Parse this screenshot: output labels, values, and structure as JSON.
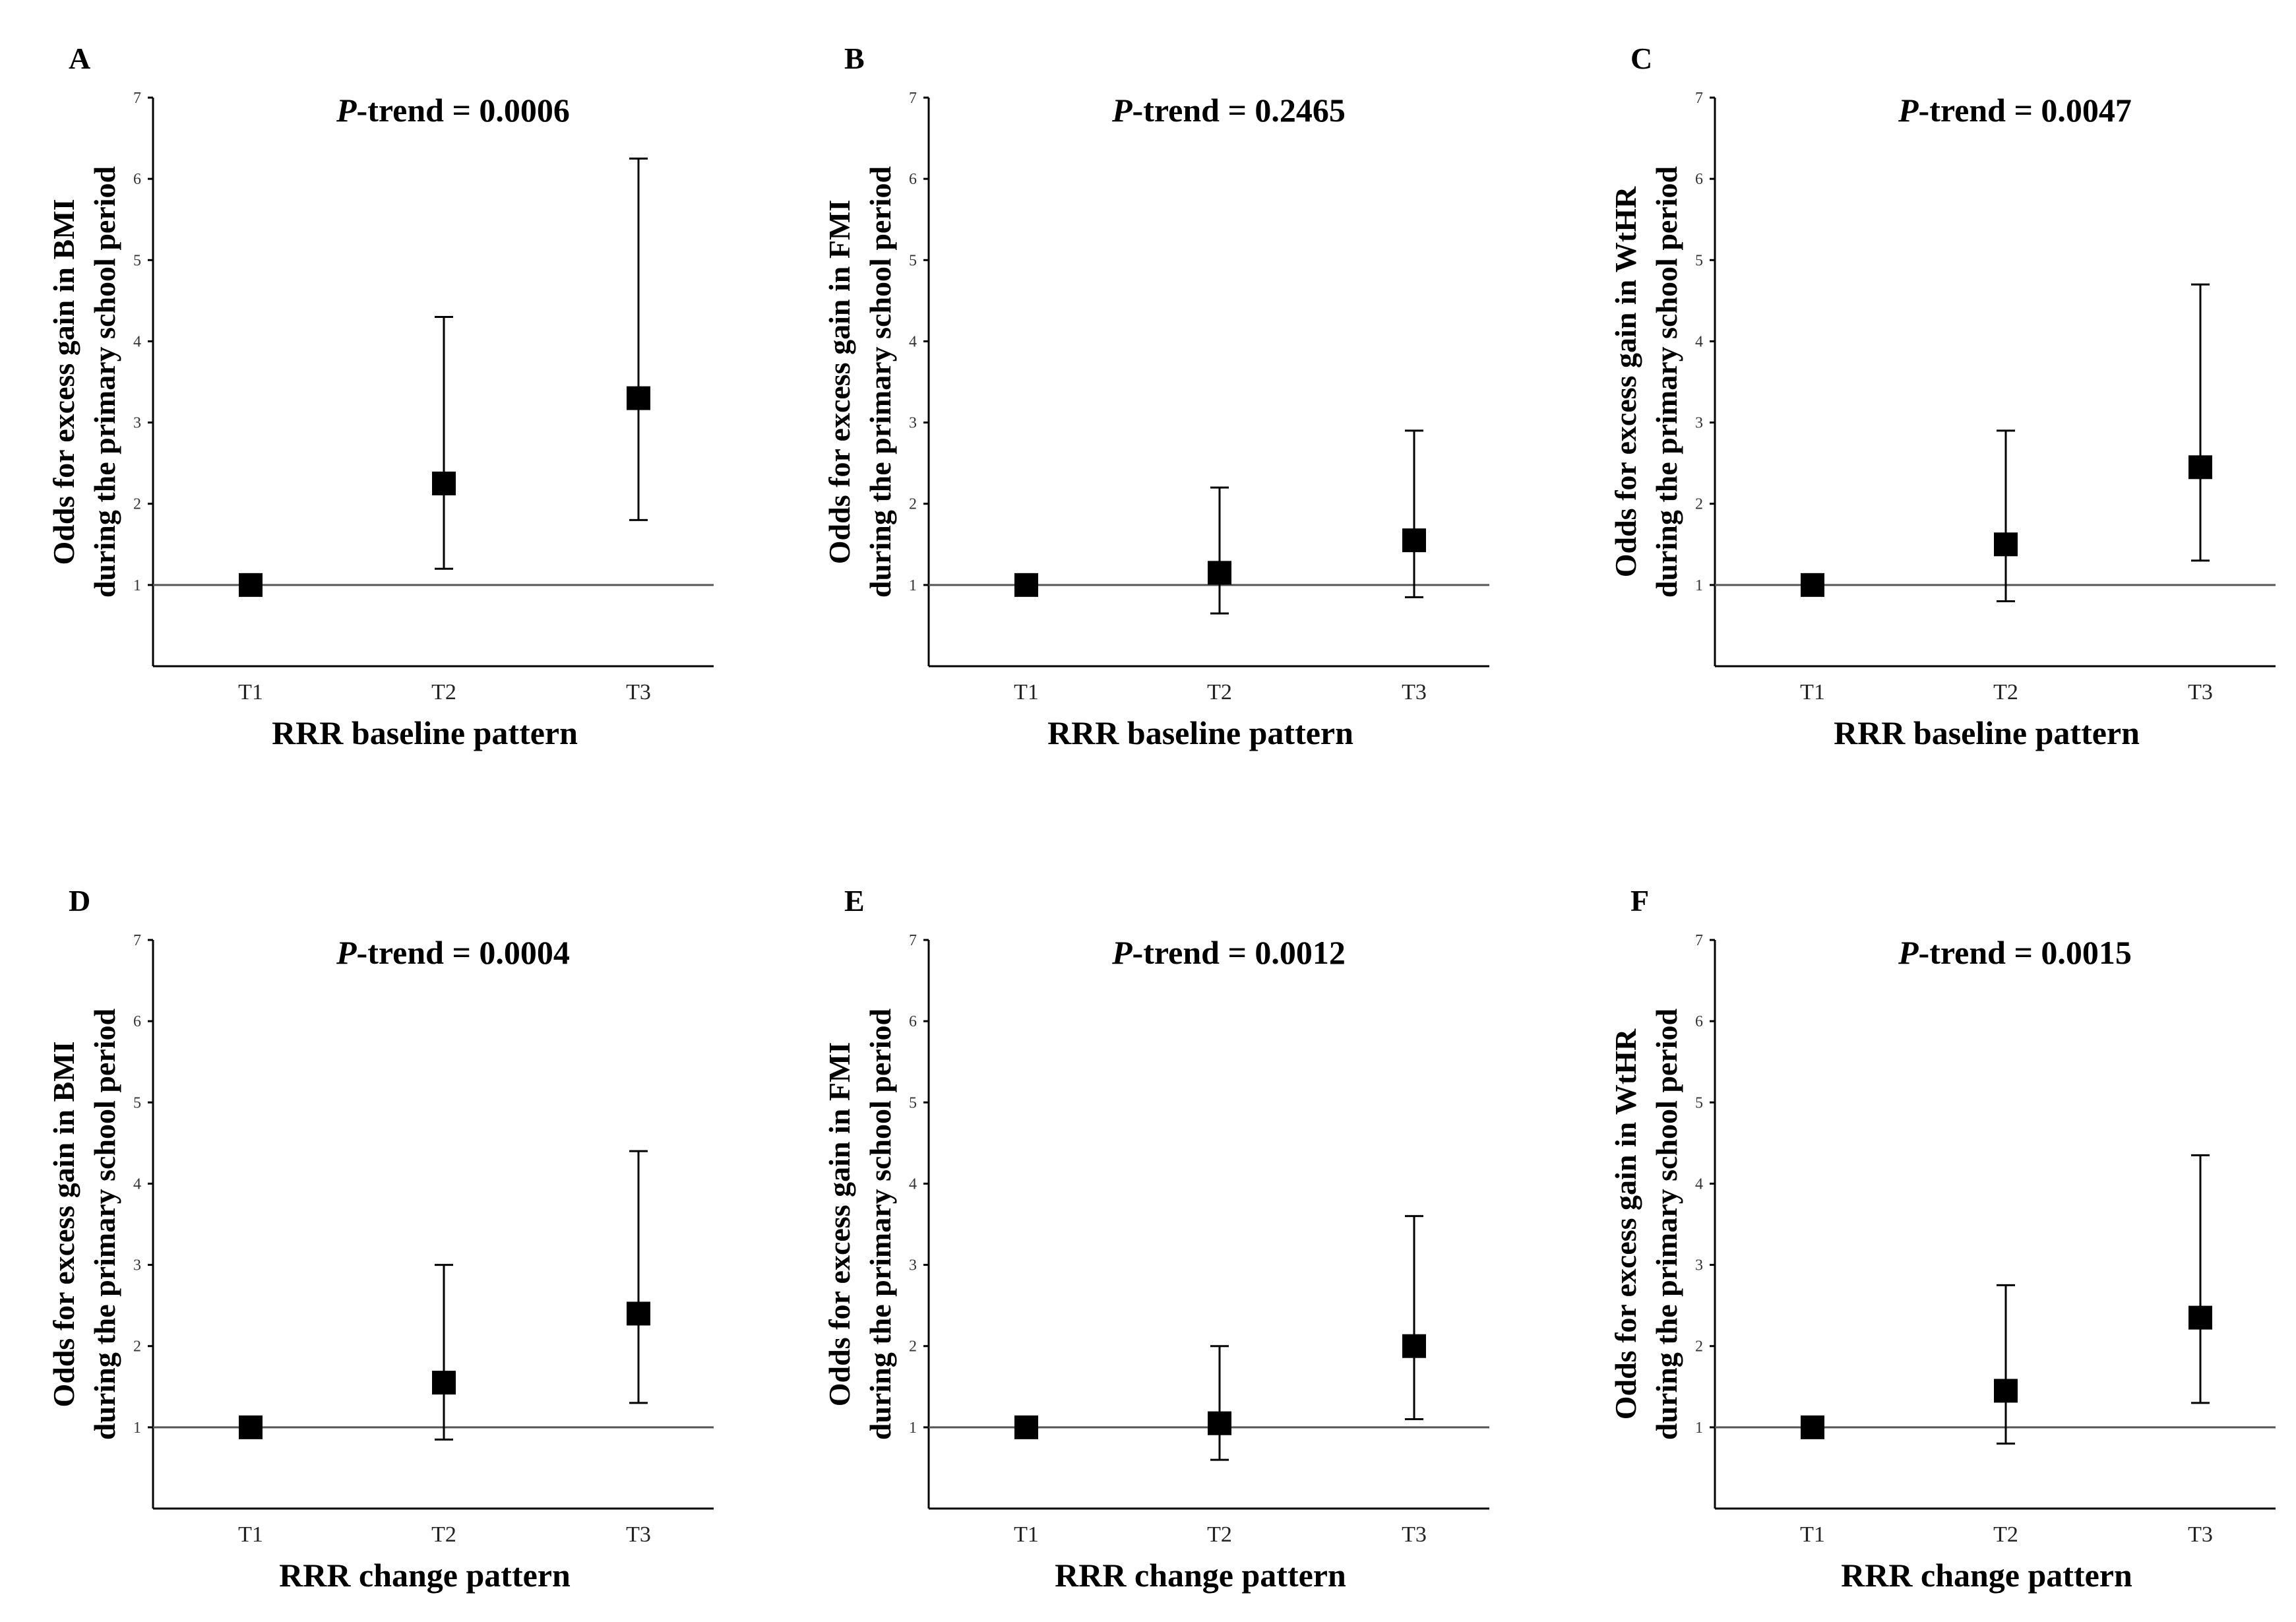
{
  "figure": {
    "charts": [
      {
        "letter": "A",
        "p_trend_prefix": "P",
        "p_trend_text": "-trend = 0.0006",
        "ylabel_line1": "Odds for excess gain in BMI",
        "ylabel_line2": "during the primary school period",
        "xlabel": "RRR baseline pattern"
      },
      {
        "letter": "B",
        "p_trend_prefix": "P",
        "p_trend_text": "-trend = 0.2465",
        "ylabel_line1": "Odds for excess gain in FMI",
        "ylabel_line2": "during the primary school period",
        "xlabel": "RRR baseline pattern"
      },
      {
        "letter": "C",
        "p_trend_prefix": "P",
        "p_trend_text": "-trend = 0.0047",
        "ylabel_line1": "Odds for excess gain in WtHR",
        "ylabel_line2": "during the primary school period",
        "xlabel": "RRR baseline pattern"
      },
      {
        "letter": "D",
        "p_trend_prefix": "P",
        "p_trend_text": "-trend = 0.0004",
        "ylabel_line1": "Odds for excess gain in BMI",
        "ylabel_line2": "during the primary school period",
        "xlabel": "RRR change pattern"
      },
      {
        "letter": "E",
        "p_trend_prefix": "P",
        "p_trend_text": "-trend = 0.0012",
        "ylabel_line1": "Odds for excess gain in FMI",
        "ylabel_line2": "during the primary school period",
        "xlabel": "RRR change pattern"
      },
      {
        "letter": "F",
        "p_trend_prefix": "P",
        "p_trend_text": "-trend = 0.0015",
        "ylabel_line1": "Odds for excess gain in WtHR",
        "ylabel_line2": "during the primary school period",
        "xlabel": "RRR change pattern"
      }
    ]
  },
  "chart_data": [
    {
      "type": "scatter",
      "panel": "A",
      "title": "P-trend = 0.0006",
      "xlabel": "RRR baseline pattern",
      "ylabel": "Odds for excess gain in BMI during the primary school period",
      "categories": [
        "T1",
        "T2",
        "T3"
      ],
      "values": [
        1.0,
        2.25,
        3.3
      ],
      "ci_lower": [
        1.0,
        1.2,
        1.8
      ],
      "ci_upper": [
        1.0,
        4.3,
        6.25
      ],
      "ylim": [
        0,
        7
      ],
      "yticks": [
        1,
        2,
        3,
        4,
        5,
        6,
        7
      ],
      "reference_line": 1
    },
    {
      "type": "scatter",
      "panel": "B",
      "title": "P-trend = 0.2465",
      "xlabel": "RRR baseline pattern",
      "ylabel": "Odds for excess gain in FMI during the primary school period",
      "categories": [
        "T1",
        "T2",
        "T3"
      ],
      "values": [
        1.0,
        1.15,
        1.55
      ],
      "ci_lower": [
        1.0,
        0.65,
        0.85
      ],
      "ci_upper": [
        1.0,
        2.2,
        2.9
      ],
      "ylim": [
        0,
        7
      ],
      "yticks": [
        1,
        2,
        3,
        4,
        5,
        6,
        7
      ],
      "reference_line": 1
    },
    {
      "type": "scatter",
      "panel": "C",
      "title": "P-trend = 0.0047",
      "xlabel": "RRR baseline pattern",
      "ylabel": "Odds for excess gain in WtHR during the primary school period",
      "categories": [
        "T1",
        "T2",
        "T3"
      ],
      "values": [
        1.0,
        1.5,
        2.45
      ],
      "ci_lower": [
        1.0,
        0.8,
        1.3
      ],
      "ci_upper": [
        1.0,
        2.9,
        4.7
      ],
      "ylim": [
        0,
        7
      ],
      "yticks": [
        1,
        2,
        3,
        4,
        5,
        6,
        7
      ],
      "reference_line": 1
    },
    {
      "type": "scatter",
      "panel": "D",
      "title": "P-trend = 0.0004",
      "xlabel": "RRR change pattern",
      "ylabel": "Odds for excess gain in BMI during the primary school period",
      "categories": [
        "T1",
        "T2",
        "T3"
      ],
      "values": [
        1.0,
        1.55,
        2.4
      ],
      "ci_lower": [
        1.0,
        0.85,
        1.3
      ],
      "ci_upper": [
        1.0,
        3.0,
        4.4
      ],
      "ylim": [
        0,
        7
      ],
      "yticks": [
        1,
        2,
        3,
        4,
        5,
        6,
        7
      ],
      "reference_line": 1
    },
    {
      "type": "scatter",
      "panel": "E",
      "title": "P-trend = 0.0012",
      "xlabel": "RRR change pattern",
      "ylabel": "Odds for excess gain in FMI during the primary school period",
      "categories": [
        "T1",
        "T2",
        "T3"
      ],
      "values": [
        1.0,
        1.05,
        2.0
      ],
      "ci_lower": [
        1.0,
        0.6,
        1.1
      ],
      "ci_upper": [
        1.0,
        2.0,
        3.6
      ],
      "ylim": [
        0,
        7
      ],
      "yticks": [
        1,
        2,
        3,
        4,
        5,
        6,
        7
      ],
      "reference_line": 1
    },
    {
      "type": "scatter",
      "panel": "F",
      "title": "P-trend = 0.0015",
      "xlabel": "RRR change pattern",
      "ylabel": "Odds for excess gain in WtHR during the primary school period",
      "categories": [
        "T1",
        "T2",
        "T3"
      ],
      "values": [
        1.0,
        1.45,
        2.35
      ],
      "ci_lower": [
        1.0,
        0.8,
        1.3
      ],
      "ci_upper": [
        1.0,
        2.75,
        4.35
      ],
      "ylim": [
        0,
        7
      ],
      "yticks": [
        1,
        2,
        3,
        4,
        5,
        6,
        7
      ],
      "reference_line": 1
    }
  ]
}
